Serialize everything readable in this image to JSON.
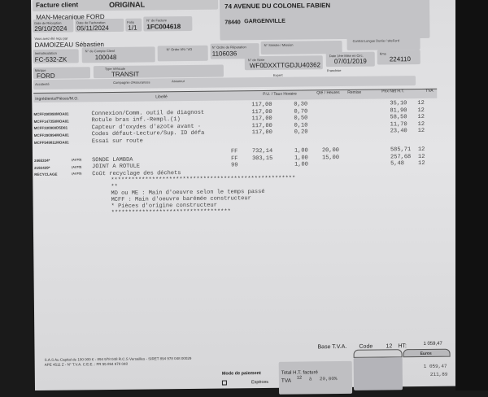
{
  "header": {
    "doc_type": "Facture client",
    "original": "ORIGINAL",
    "garage": "MAN-Mecanique FORD",
    "address": "74 AVENUE DU COLONEL FABIEN",
    "postcode": "78440",
    "city": "GARGENVILLE"
  },
  "fields": {
    "date_reception": {
      "label": "Date de Réception",
      "value": "29/10/2024"
    },
    "date_facturation": {
      "label": "Date de Facturation",
      "value": "05/11/2024"
    },
    "folio": {
      "label": "Folio",
      "value": "1/1"
    },
    "numero_facture": {
      "label": "N° de Facture",
      "value": "1FC004618"
    },
    "requis_par": {
      "label": "Vous avez été reçu par",
      "value": "DAMOIZEAU Sébastien"
    },
    "immatriculation": {
      "label": "Immatriculation",
      "value": "FC-532-ZK"
    },
    "compte_client": {
      "label": "N° de Compte Client",
      "value": "100048"
    },
    "ordre_vn_vo": {
      "label": "N° Ordre VN / VO",
      "value": ""
    },
    "ordre_reparation": {
      "label": "N° Ordre de Réparation",
      "value": "1106036"
    },
    "sinistre": {
      "label": "N° Sinistre / Mission",
      "value": ""
    },
    "contrat": {
      "label": "Contrat Longue Durée / siteFord",
      "value": ""
    },
    "serie": {
      "label": "N° de Série",
      "value": "WF0DXXTTGDJU40362"
    },
    "mise_en_circ": {
      "label": "Date 1ère Mise en Circ.",
      "value": "07/01/2019"
    },
    "kms": {
      "label": "Kms",
      "value": "224110"
    },
    "marque": {
      "label": "Marque",
      "value": "FORD"
    },
    "type_vehicule": {
      "label": "Type Véhicule",
      "value": "TRANSIT"
    },
    "expert": {
      "label": "Expert",
      "value": ""
    },
    "franchise": {
      "label": "Franchise",
      "value": ""
    },
    "accidente": {
      "label": "Accidenté",
      "value": ""
    },
    "compagnie": {
      "label": "Compagnie d'Assurances",
      "value": ""
    },
    "assureur": {
      "label": "Assureur",
      "value": ""
    }
  },
  "table": {
    "headers": {
      "ref": "Ingrédients/Pièces/M.O.",
      "libelle": "Libellé",
      "pu": "P.U. / Taux Horaire",
      "qte": "Qté / Heures",
      "remise": "Remise",
      "prix": "Prix Net H.T.",
      "tva": "TVA"
    },
    "rows": [
      {
        "ref": "",
        "tag": "",
        "libelle": "",
        "code": "",
        "pu": "117,00",
        "qte": "0,30",
        "remise": "",
        "prix": "35,10",
        "tva": "12"
      },
      {
        "ref": "MCFF290990MOA81",
        "tag": "",
        "libelle": "Connexion/Comm. outil de diagnost",
        "code": "",
        "pu": "117,00",
        "qte": "0,70",
        "remise": "",
        "prix": "81,90",
        "tva": "12"
      },
      {
        "ref": "MCFF147350MOA81",
        "tag": "",
        "libelle": "Rotule bras inf.-Rempl.(1)",
        "code": "",
        "pu": "117,00",
        "qte": "0,50",
        "remise": "",
        "prix": "58,50",
        "tva": "12"
      },
      {
        "ref": "MCFF330900D5D81",
        "tag": "",
        "libelle": "Capteur d'oxydes d'azote avant -",
        "code": "",
        "pu": "117,00",
        "qte": "0,10",
        "remise": "",
        "prix": "11,70",
        "tva": "12"
      },
      {
        "ref": "MCFF290994MOA81",
        "tag": "",
        "libelle": "Codes défaut-Lecture/Sup. ID défa",
        "code": "",
        "pu": "117,00",
        "qte": "0,20",
        "remise": "",
        "prix": "23,40",
        "tva": "12"
      },
      {
        "ref": "MCFF549811MOA81",
        "tag": "",
        "libelle": "Essai sur route",
        "code": "",
        "pu": "",
        "qte": "",
        "remise": "",
        "prix": "",
        "tva": ""
      },
      {
        "ref": "",
        "tag": "",
        "libelle": "",
        "code": "FF",
        "pu": "732,14",
        "qte": "1,00",
        "remise": "20,00",
        "prix": "585,71",
        "tva": "12"
      },
      {
        "ref": "2465334*",
        "tag": "(AUTO)",
        "libelle": "SONDE LAMBDA",
        "code": "FF",
        "pu": "303,15",
        "qte": "1,00",
        "remise": "15,00",
        "prix": "257,68",
        "tva": "12"
      },
      {
        "ref": "2192439*",
        "tag": "(AUTO)",
        "libelle": "JOINT A ROTULE",
        "code": "99",
        "pu": "",
        "qte": "1,00",
        "remise": "",
        "prix": "5,48",
        "tva": "12"
      },
      {
        "ref": "RECYCLAGE",
        "tag": "(AUTO)",
        "libelle": "Coût recyclage des déchets",
        "code": "",
        "pu": "",
        "qte": "",
        "remise": "",
        "prix": "",
        "tva": ""
      }
    ],
    "notes": [
      "******************************************************",
      "**",
      "MD ou ME : Main d'oeuvre selon le temps passé",
      "MCFF : Main d'oeuvre barémée constructeur",
      "* Pièces d'origine constructeur",
      "***********************************"
    ]
  },
  "footer": {
    "legal1": "S.A.S Au Capital de 100 000 € - 894 978 048 R.C.S Versailles - SIRET 894 978 048 00029",
    "legal2": "APE 4511 Z - N° T.V.A. C.E.E. : FR 55 894 978 048",
    "base_tva": "Base T.V.A.",
    "code_label": "Code",
    "code": "12",
    "ht_label": "HT:",
    "ht": "1 059,47",
    "currency": "Euros",
    "payment_label": "Mode de paiement",
    "cash_label": "Espèces",
    "total_ht_label": "Total H.T. facturé",
    "total_ht": "1 059,47",
    "tva_label": "TVA",
    "tva_code": "12",
    "tva_at": "à",
    "tva_rate": "20,00%",
    "tva_amount": "211,89"
  }
}
